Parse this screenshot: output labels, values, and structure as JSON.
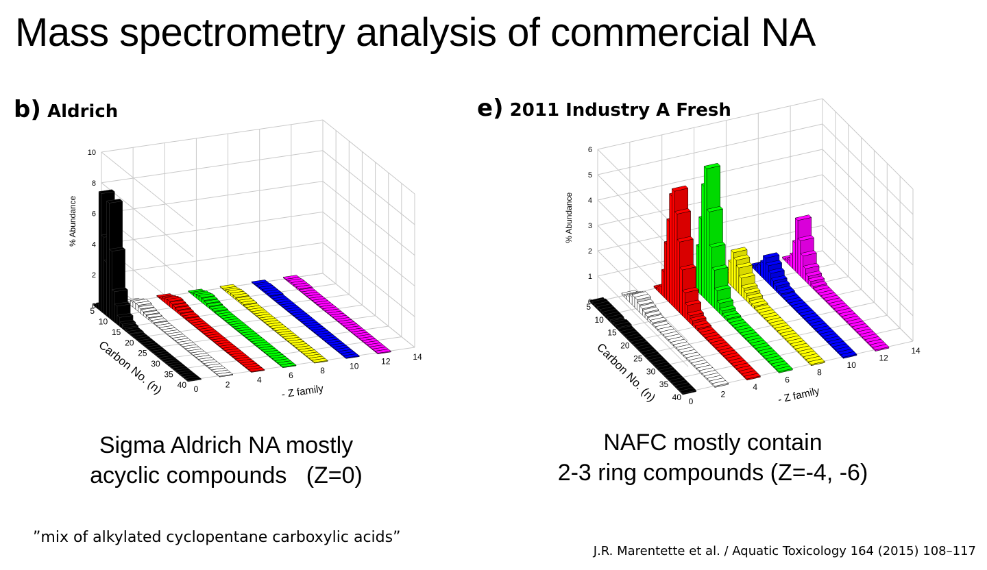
{
  "slide": {
    "title": "Mass spectrometry analysis of commercial NA",
    "quote": "”mix of alkylated cyclopentane carboxylic acids”",
    "citation": "J.R. Marentette et al. / Aquatic Toxicology 164 (2015) 108–117"
  },
  "panels": [
    {
      "letter": "b)",
      "name": "Aldrich",
      "caption_line1": "Sigma Aldrich NA mostly",
      "caption_line2": "acyclic compounds   (Z=0)"
    },
    {
      "letter": "e)",
      "name": "2011 Industry A Fresh",
      "caption_line1": "NAFC mostly contain",
      "caption_line2": "2-3 ring compounds (Z=-4, -6)"
    }
  ],
  "colors": {
    "z0": "#000000",
    "z2": "#ffffff",
    "z4": "#ff0000",
    "z6": "#00ff00",
    "z8": "#ffff00",
    "z10": "#0000ff",
    "z12": "#ff00ff",
    "grid": "#c8c8c8"
  },
  "chart_data": [
    {
      "type": "bar3d",
      "title": "Aldrich",
      "xlabel": "- Z family",
      "ylabel": "Carbon No. (n)",
      "zlabel": "% Abundance",
      "x_ticks": [
        "0",
        "2",
        "4",
        "6",
        "8",
        "10",
        "12",
        "14"
      ],
      "y_ticks": [
        "5",
        "10",
        "15",
        "20",
        "25",
        "30",
        "35",
        "40"
      ],
      "z_ticks": [
        "0",
        "2",
        "4",
        "6",
        "8",
        "10"
      ],
      "zlim": [
        0,
        10
      ],
      "carbon_numbers": [
        5,
        6,
        7,
        8,
        9,
        10,
        11,
        12,
        13,
        14,
        15,
        16,
        17,
        18,
        19,
        20,
        21,
        22,
        23,
        24,
        25,
        26,
        27,
        28,
        29,
        30,
        31,
        32,
        33,
        34,
        35,
        36,
        37,
        38,
        39,
        40
      ],
      "series": [
        {
          "z_family": 0,
          "values": [
            0.1,
            0.3,
            7.7,
            5.0,
            3.5,
            7.5,
            4.5,
            2.0,
            1.2,
            0.6,
            0.3,
            0.2,
            0.1,
            0.1,
            0.05,
            0.05,
            0.05,
            0.05,
            0.05,
            0.05,
            0.05,
            0.05,
            0.05,
            0.05,
            0.05,
            0.05,
            0.05,
            0.05,
            0.05,
            0.05,
            0.05,
            0.05,
            0.05,
            0.05,
            0.05,
            0.05
          ]
        },
        {
          "z_family": 2,
          "values": [
            0.05,
            0.1,
            0.3,
            0.4,
            0.4,
            0.3,
            0.25,
            0.2,
            0.15,
            0.1,
            0.1,
            0.05,
            0.05,
            0.05,
            0.05,
            0.05,
            0.05,
            0.05,
            0.05,
            0.05,
            0.05,
            0.05,
            0.05,
            0.05,
            0.05,
            0.05,
            0.05,
            0.05,
            0.05,
            0.05,
            0.05,
            0.05,
            0.05,
            0.05,
            0.05,
            0.05
          ]
        },
        {
          "z_family": 4,
          "values": [
            0.05,
            0.1,
            0.2,
            0.3,
            0.35,
            0.3,
            0.25,
            0.2,
            0.15,
            0.1,
            0.1,
            0.05,
            0.05,
            0.05,
            0.05,
            0.05,
            0.05,
            0.05,
            0.05,
            0.05,
            0.05,
            0.05,
            0.05,
            0.05,
            0.05,
            0.05,
            0.05,
            0.05,
            0.05,
            0.05,
            0.05,
            0.05,
            0.05,
            0.05,
            0.05,
            0.05
          ]
        },
        {
          "z_family": 6,
          "values": [
            0.05,
            0.1,
            0.2,
            0.25,
            0.3,
            0.25,
            0.2,
            0.15,
            0.1,
            0.1,
            0.05,
            0.05,
            0.05,
            0.05,
            0.05,
            0.05,
            0.05,
            0.05,
            0.05,
            0.05,
            0.05,
            0.05,
            0.05,
            0.05,
            0.05,
            0.05,
            0.05,
            0.05,
            0.05,
            0.05,
            0.05,
            0.05,
            0.05,
            0.05,
            0.05,
            0.05
          ]
        },
        {
          "z_family": 8,
          "values": [
            0.05,
            0.05,
            0.1,
            0.15,
            0.15,
            0.15,
            0.1,
            0.1,
            0.1,
            0.05,
            0.05,
            0.05,
            0.05,
            0.05,
            0.05,
            0.05,
            0.05,
            0.05,
            0.05,
            0.05,
            0.05,
            0.05,
            0.05,
            0.05,
            0.05,
            0.05,
            0.05,
            0.05,
            0.05,
            0.05,
            0.05,
            0.05,
            0.05,
            0.05,
            0.05,
            0.05
          ]
        },
        {
          "z_family": 10,
          "values": [
            0.05,
            0.05,
            0.1,
            0.1,
            0.1,
            0.1,
            0.1,
            0.05,
            0.05,
            0.05,
            0.05,
            0.05,
            0.05,
            0.05,
            0.05,
            0.05,
            0.05,
            0.05,
            0.05,
            0.05,
            0.05,
            0.05,
            0.05,
            0.05,
            0.05,
            0.05,
            0.05,
            0.05,
            0.05,
            0.05,
            0.05,
            0.05,
            0.05,
            0.05,
            0.05,
            0.05
          ]
        },
        {
          "z_family": 12,
          "values": [
            0.05,
            0.05,
            0.1,
            0.1,
            0.1,
            0.1,
            0.05,
            0.05,
            0.05,
            0.05,
            0.05,
            0.05,
            0.05,
            0.05,
            0.05,
            0.05,
            0.05,
            0.05,
            0.05,
            0.05,
            0.05,
            0.05,
            0.05,
            0.05,
            0.05,
            0.05,
            0.05,
            0.05,
            0.05,
            0.05,
            0.05,
            0.05,
            0.05,
            0.05,
            0.05,
            0.05
          ]
        }
      ]
    },
    {
      "type": "bar3d",
      "title": "2011 Industry A Fresh",
      "xlabel": "- Z family",
      "ylabel": "Carbon No. (n)",
      "zlabel": "% Abundance",
      "x_ticks": [
        "0",
        "2",
        "4",
        "6",
        "8",
        "10",
        "12",
        "14"
      ],
      "y_ticks": [
        "5",
        "10",
        "15",
        "20",
        "25",
        "30",
        "35",
        "40"
      ],
      "z_ticks": [
        "0",
        "1",
        "2",
        "3",
        "4",
        "5",
        "6"
      ],
      "zlim": [
        0,
        6
      ],
      "carbon_numbers": [
        5,
        6,
        7,
        8,
        9,
        10,
        11,
        12,
        13,
        14,
        15,
        16,
        17,
        18,
        19,
        20,
        21,
        22,
        23,
        24,
        25,
        26,
        27,
        28,
        29,
        30,
        31,
        32,
        33,
        34,
        35,
        36,
        37,
        38,
        39,
        40
      ],
      "series": [
        {
          "z_family": 0,
          "values": [
            0.05,
            0.1,
            0.1,
            0.1,
            0.1,
            0.1,
            0.1,
            0.1,
            0.05,
            0.1,
            0.1,
            0.05,
            0.05,
            0.05,
            0.05,
            0.05,
            0.05,
            0.05,
            0.05,
            0.05,
            0.05,
            0.05,
            0.05,
            0.05,
            0.05,
            0.05,
            0.05,
            0.05,
            0.05,
            0.05,
            0.05,
            0.05,
            0.05,
            0.05,
            0.05,
            0.05
          ]
        },
        {
          "z_family": 2,
          "values": [
            0.05,
            0.1,
            0.2,
            0.3,
            0.4,
            0.4,
            0.3,
            0.25,
            0.2,
            0.15,
            0.1,
            0.1,
            0.05,
            0.05,
            0.05,
            0.05,
            0.05,
            0.05,
            0.05,
            0.05,
            0.05,
            0.05,
            0.05,
            0.05,
            0.05,
            0.05,
            0.05,
            0.05,
            0.05,
            0.05,
            0.05,
            0.05,
            0.05,
            0.05,
            0.05,
            0.05
          ]
        },
        {
          "z_family": 4,
          "values": [
            0.05,
            0.1,
            0.3,
            1.0,
            2.2,
            3.2,
            4.3,
            4.6,
            3.8,
            2.8,
            1.8,
            1.0,
            0.6,
            0.3,
            0.2,
            0.1,
            0.1,
            0.05,
            0.05,
            0.05,
            0.05,
            0.05,
            0.05,
            0.05,
            0.05,
            0.05,
            0.05,
            0.05,
            0.05,
            0.05,
            0.05,
            0.05,
            0.05,
            0.05,
            0.05,
            0.05
          ]
        },
        {
          "z_family": 6,
          "values": [
            0.05,
            0.1,
            0.3,
            0.8,
            1.8,
            3.0,
            4.4,
            5.2,
            3.6,
            2.3,
            1.5,
            0.8,
            0.4,
            0.2,
            0.1,
            0.1,
            0.05,
            0.05,
            0.05,
            0.05,
            0.05,
            0.05,
            0.05,
            0.05,
            0.05,
            0.05,
            0.05,
            0.05,
            0.05,
            0.05,
            0.05,
            0.05,
            0.05,
            0.05,
            0.05,
            0.05
          ]
        },
        {
          "z_family": 8,
          "values": [
            0.05,
            0.1,
            0.2,
            0.4,
            0.9,
            1.4,
            1.2,
            1.0,
            0.7,
            0.4,
            0.3,
            0.2,
            0.1,
            0.1,
            0.05,
            0.05,
            0.05,
            0.05,
            0.05,
            0.05,
            0.05,
            0.05,
            0.05,
            0.05,
            0.05,
            0.05,
            0.05,
            0.05,
            0.05,
            0.05,
            0.05,
            0.05,
            0.05,
            0.05,
            0.05,
            0.05
          ]
        },
        {
          "z_family": 10,
          "values": [
            0.05,
            0.1,
            0.2,
            0.4,
            0.6,
            0.9,
            0.7,
            0.5,
            0.3,
            0.2,
            0.1,
            0.1,
            0.05,
            0.05,
            0.05,
            0.05,
            0.05,
            0.05,
            0.05,
            0.05,
            0.05,
            0.05,
            0.05,
            0.05,
            0.05,
            0.05,
            0.05,
            0.05,
            0.05,
            0.05,
            0.05,
            0.05,
            0.05,
            0.05,
            0.05,
            0.05
          ]
        },
        {
          "z_family": 12,
          "values": [
            0.05,
            0.1,
            0.2,
            0.5,
            1.1,
            2.1,
            1.4,
            0.9,
            0.5,
            0.3,
            0.2,
            0.1,
            0.05,
            0.05,
            0.05,
            0.05,
            0.05,
            0.05,
            0.05,
            0.05,
            0.05,
            0.05,
            0.05,
            0.05,
            0.05,
            0.05,
            0.05,
            0.05,
            0.05,
            0.05,
            0.05,
            0.05,
            0.05,
            0.05,
            0.05,
            0.05
          ]
        }
      ]
    }
  ]
}
